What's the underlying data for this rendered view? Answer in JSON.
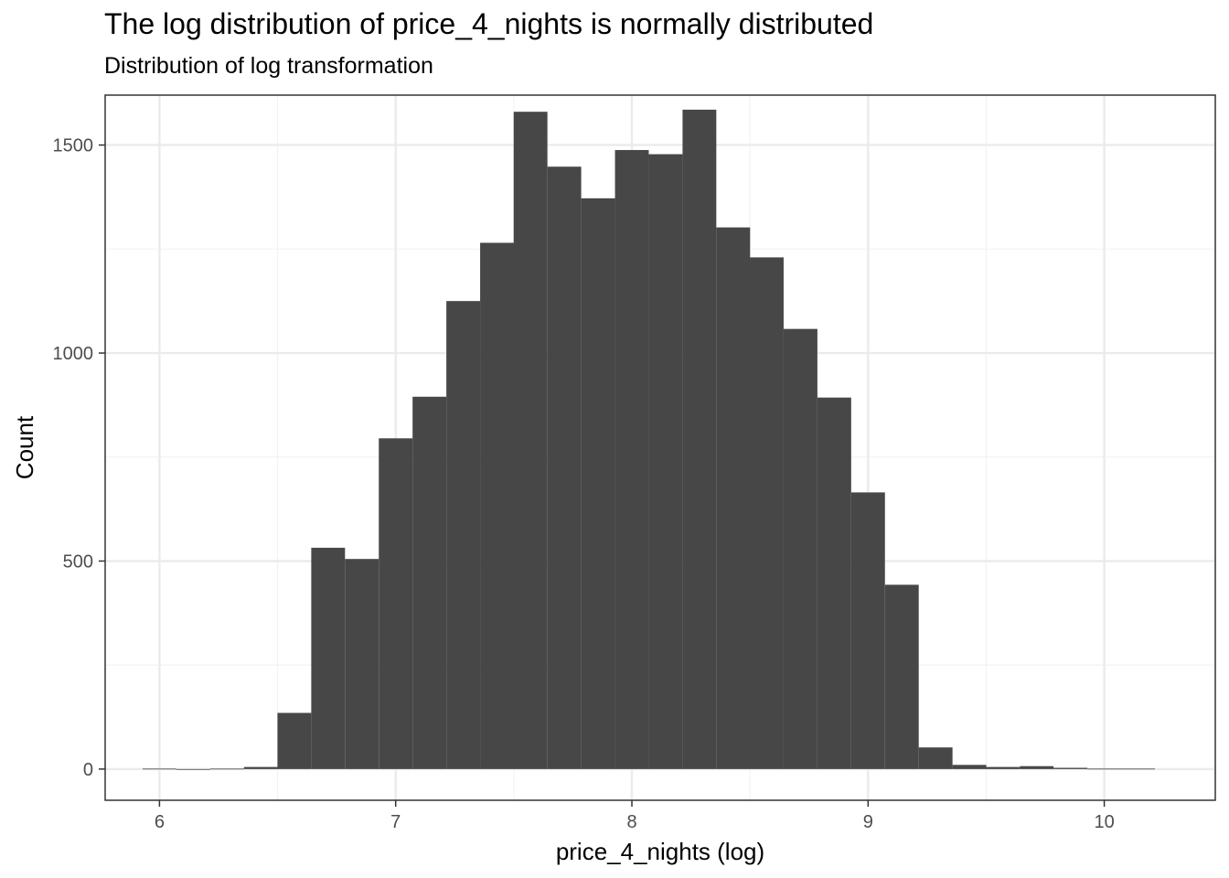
{
  "chart_data": {
    "type": "bar",
    "title": "The log distribution of price_4_nights is normally distributed",
    "subtitle": "Distribution of log transformation",
    "xlabel": "price_4_nights (log)",
    "ylabel": "Count",
    "xlim": [
      5.77,
      10.47
    ],
    "ylim": [
      -75,
      1620
    ],
    "x_ticks": [
      6,
      7,
      8,
      9,
      10
    ],
    "y_ticks": [
      0,
      500,
      1000,
      1500
    ],
    "bin_width": 0.1429,
    "bins": [
      {
        "x": 6.0,
        "count": 1
      },
      {
        "x": 6.143,
        "count": 0
      },
      {
        "x": 6.286,
        "count": 1
      },
      {
        "x": 6.429,
        "count": 5
      },
      {
        "x": 6.571,
        "count": 135
      },
      {
        "x": 6.714,
        "count": 532
      },
      {
        "x": 6.857,
        "count": 505
      },
      {
        "x": 7.0,
        "count": 795
      },
      {
        "x": 7.143,
        "count": 895
      },
      {
        "x": 7.286,
        "count": 1125
      },
      {
        "x": 7.429,
        "count": 1265
      },
      {
        "x": 7.571,
        "count": 1580
      },
      {
        "x": 7.714,
        "count": 1448
      },
      {
        "x": 7.857,
        "count": 1372
      },
      {
        "x": 8.0,
        "count": 1488
      },
      {
        "x": 8.143,
        "count": 1478
      },
      {
        "x": 8.286,
        "count": 1585
      },
      {
        "x": 8.429,
        "count": 1302
      },
      {
        "x": 8.571,
        "count": 1230
      },
      {
        "x": 8.714,
        "count": 1058
      },
      {
        "x": 8.857,
        "count": 893
      },
      {
        "x": 9.0,
        "count": 665
      },
      {
        "x": 9.143,
        "count": 443
      },
      {
        "x": 9.286,
        "count": 52
      },
      {
        "x": 9.429,
        "count": 10
      },
      {
        "x": 9.571,
        "count": 5
      },
      {
        "x": 9.714,
        "count": 7
      },
      {
        "x": 9.857,
        "count": 3
      },
      {
        "x": 10.0,
        "count": 1
      },
      {
        "x": 10.143,
        "count": 1
      }
    ],
    "grid": true,
    "colors": {
      "bar": "#474747",
      "panel_border": "#333333",
      "grid_major": "#ebebeb",
      "grid_minor": "#f2f2f2",
      "tick_label": "#4d4d4d"
    }
  }
}
